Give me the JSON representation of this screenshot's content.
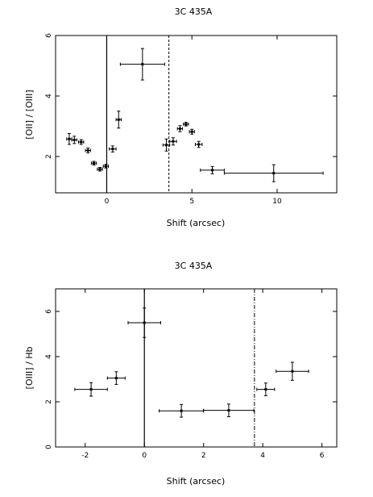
{
  "chart_data": [
    {
      "type": "scatter",
      "title": "3C 435A",
      "xlabel": "Shift (arcsec)",
      "ylabel": "[OII] / [OIII]",
      "xlim": [
        -3,
        13.5
      ],
      "ylim": [
        0.8,
        6
      ],
      "xticks": [
        0,
        5,
        10
      ],
      "yticks": [
        2,
        4,
        6
      ],
      "vline_solid": 0,
      "vline_dashed": 3.65,
      "grid": false,
      "points": [
        {
          "x": -2.2,
          "y": 2.58,
          "xerr": 0.15,
          "yerr": 0.18
        },
        {
          "x": -1.9,
          "y": 2.55,
          "xerr": 0.15,
          "yerr": 0.12
        },
        {
          "x": -1.5,
          "y": 2.48,
          "xerr": 0.15,
          "yerr": 0.08
        },
        {
          "x": -1.1,
          "y": 2.2,
          "xerr": 0.15,
          "yerr": 0.08
        },
        {
          "x": -0.75,
          "y": 1.78,
          "xerr": 0.15,
          "yerr": 0.06
        },
        {
          "x": -0.4,
          "y": 1.58,
          "xerr": 0.15,
          "yerr": 0.06
        },
        {
          "x": -0.05,
          "y": 1.68,
          "xerr": 0.15,
          "yerr": 0.06
        },
        {
          "x": 0.35,
          "y": 2.25,
          "xerr": 0.2,
          "yerr": 0.1
        },
        {
          "x": 0.7,
          "y": 3.22,
          "xerr": 0.15,
          "yerr": 0.28
        },
        {
          "x": 2.1,
          "y": 5.05,
          "xerr": 1.3,
          "yerr": 0.52
        },
        {
          "x": 3.5,
          "y": 2.38,
          "xerr": 0.2,
          "yerr": 0.2
        },
        {
          "x": 3.9,
          "y": 2.5,
          "xerr": 0.2,
          "yerr": 0.12
        },
        {
          "x": 4.3,
          "y": 2.92,
          "xerr": 0.15,
          "yerr": 0.1
        },
        {
          "x": 4.65,
          "y": 3.07,
          "xerr": 0.15,
          "yerr": 0.06
        },
        {
          "x": 5.0,
          "y": 2.82,
          "xerr": 0.15,
          "yerr": 0.08
        },
        {
          "x": 5.4,
          "y": 2.4,
          "xerr": 0.2,
          "yerr": 0.1
        },
        {
          "x": 6.2,
          "y": 1.55,
          "xerr": 0.7,
          "yerr": 0.12
        },
        {
          "x": 9.8,
          "y": 1.45,
          "xerr": 2.9,
          "yerr": 0.28
        }
      ]
    },
    {
      "type": "scatter",
      "title": "3C 435A",
      "xlabel": "Shift (arcsec)",
      "ylabel": "[OIII] / Hb",
      "xlim": [
        -3,
        6.5
      ],
      "ylim": [
        0,
        7
      ],
      "xticks": [
        -2,
        0,
        2,
        4,
        6
      ],
      "yticks": [
        0,
        2,
        4,
        6
      ],
      "vline_solid": 0,
      "vline_dashed": 3.72,
      "grid": false,
      "points": [
        {
          "x": -1.8,
          "y": 2.55,
          "xerr": 0.55,
          "yerr": 0.3
        },
        {
          "x": -0.95,
          "y": 3.05,
          "xerr": 0.3,
          "yerr": 0.28
        },
        {
          "x": 0.0,
          "y": 5.5,
          "xerr": 0.55,
          "yerr": 0.65
        },
        {
          "x": 1.25,
          "y": 1.6,
          "xerr": 0.75,
          "yerr": 0.28
        },
        {
          "x": 2.85,
          "y": 1.62,
          "xerr": 0.85,
          "yerr": 0.28
        },
        {
          "x": 4.1,
          "y": 2.55,
          "xerr": 0.3,
          "yerr": 0.28
        },
        {
          "x": 5.0,
          "y": 3.35,
          "xerr": 0.55,
          "yerr": 0.4
        }
      ]
    }
  ]
}
